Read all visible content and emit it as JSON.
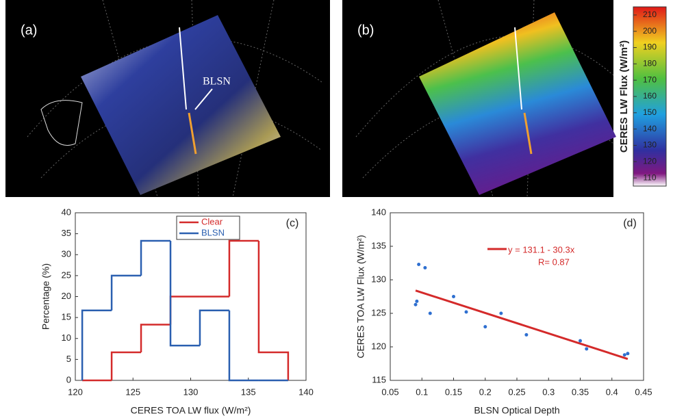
{
  "images": {
    "a": {
      "label": "(a)",
      "annotation": "BLSN"
    },
    "b": {
      "label": "(b)",
      "colorbar": {
        "label": "CERES LW Flux (W/m²)",
        "lim": [
          105,
          215
        ],
        "ticks": [
          110,
          120,
          130,
          140,
          150,
          160,
          170,
          180,
          190,
          200,
          210
        ]
      }
    }
  },
  "chart_data": [
    {
      "type": "histogram",
      "label": "(c)",
      "xlabel": "CERES TOA LW flux (W/m²)",
      "ylabel": "Percentage (%)",
      "bins": [
        120.6,
        123.15,
        125.7,
        128.25,
        130.8,
        133.35,
        135.9,
        138.45
      ],
      "series": [
        {
          "name": "Clear",
          "color": "#d42a2a",
          "values": [
            0,
            6.7,
            13.3,
            20,
            20,
            33.3,
            6.7
          ]
        },
        {
          "name": "BLSN",
          "color": "#2a5fb0",
          "values": [
            16.7,
            25,
            33.3,
            8.3,
            16.7,
            0,
            0
          ]
        }
      ],
      "xlim": [
        120,
        140
      ],
      "xticks": [
        120,
        125,
        130,
        135,
        140
      ],
      "ylim": [
        0,
        40
      ],
      "yticks": [
        0,
        5,
        10,
        15,
        20,
        25,
        30,
        35,
        40
      ]
    },
    {
      "type": "scatter",
      "label": "(d)",
      "xlabel": "BLSN Optical Depth",
      "ylabel": "CERES TOA LW Flux (W/m²)",
      "x": [
        0.09,
        0.092,
        0.095,
        0.105,
        0.113,
        0.15,
        0.17,
        0.2,
        0.225,
        0.265,
        0.35,
        0.36,
        0.42,
        0.425
      ],
      "values": [
        126.3,
        126.8,
        132.3,
        131.8,
        125,
        127.5,
        125.2,
        123,
        125,
        121.8,
        120.9,
        119.7,
        118.8,
        119
      ],
      "color": "#2e6fd0",
      "fit": {
        "x": [
          0.09,
          0.425
        ],
        "values": [
          128.4,
          118.2
        ],
        "color": "#d42a2a",
        "equation": "y = 131.1 - 30.3x",
        "r": "R= 0.87"
      },
      "xlim": [
        0.05,
        0.45
      ],
      "xticks": [
        0.05,
        0.1,
        0.15,
        0.2,
        0.25,
        0.3,
        0.35,
        0.4,
        0.45
      ],
      "ylim": [
        115,
        140
      ],
      "yticks": [
        115,
        120,
        125,
        130,
        135,
        140
      ]
    }
  ]
}
